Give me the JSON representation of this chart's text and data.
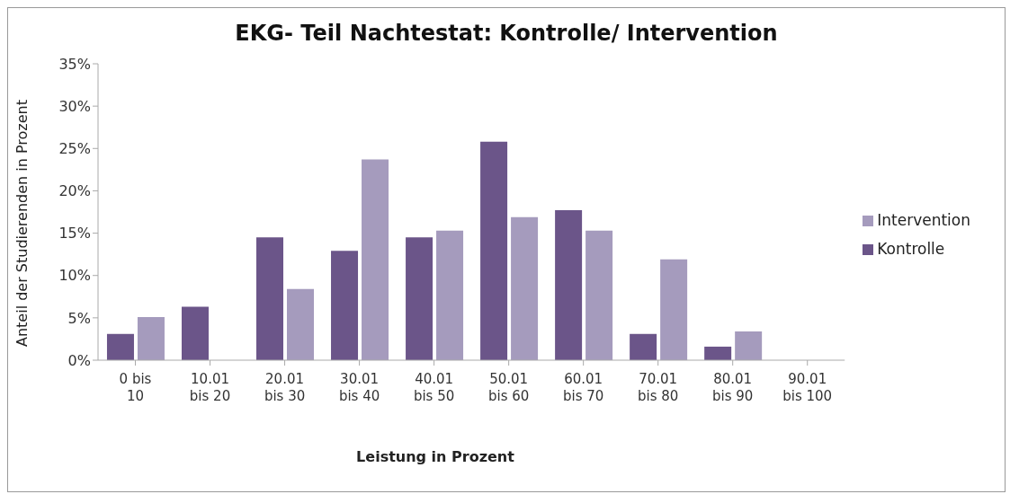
{
  "chart_data": {
    "type": "bar",
    "title": "EKG- Teil Nachtestat: Kontrolle/ Intervention",
    "xlabel": "Leistung in Prozent",
    "ylabel": "Anteil der Studierenden in Prozent",
    "categories": [
      "0 bis 10",
      "10.01 bis 20",
      "20.01 bis 30",
      "30.01 bis 40",
      "40.01 bis 50",
      "50.01 bis 60",
      "60.01 bis 70",
      "70.01 bis 80",
      "80.01 bis 90",
      "90.01 bis 100"
    ],
    "series": [
      {
        "name": "Kontrolle",
        "color": "#6b5589",
        "values": [
          3.1,
          6.3,
          14.5,
          12.9,
          14.5,
          25.8,
          17.7,
          3.1,
          1.6,
          0
        ]
      },
      {
        "name": "Intervention",
        "color": "#a59bbd",
        "values": [
          5.1,
          0,
          8.4,
          23.7,
          15.3,
          16.9,
          15.3,
          11.9,
          3.4,
          0
        ]
      }
    ],
    "ylim": [
      0,
      35
    ],
    "yticks": [
      {
        "value": 0,
        "label": "0%"
      },
      {
        "value": 5,
        "label": "5%"
      },
      {
        "value": 10,
        "label": "10%"
      },
      {
        "value": 15,
        "label": "15%"
      },
      {
        "value": 20,
        "label": "20%"
      },
      {
        "value": 25,
        "label": "25%"
      },
      {
        "value": 30,
        "label": "30%"
      },
      {
        "value": 35,
        "label": "35%"
      }
    ],
    "grid": false,
    "legend": "right"
  }
}
